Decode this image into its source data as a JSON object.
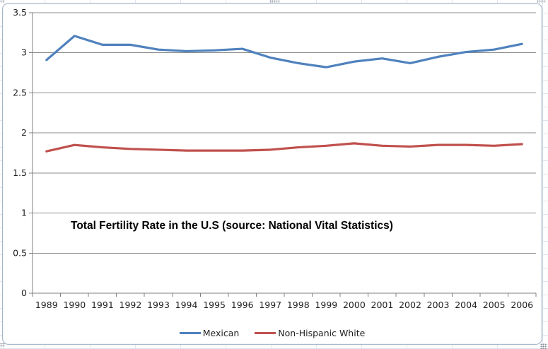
{
  "chart_data": {
    "type": "line",
    "title": "Total Fertility Rate in the U.S (source: National Vital Statistics)",
    "categories": [
      "1989",
      "1990",
      "1991",
      "1992",
      "1993",
      "1994",
      "1995",
      "1996",
      "1997",
      "1998",
      "1999",
      "2000",
      "2001",
      "2002",
      "2003",
      "2004",
      "2005",
      "2006"
    ],
    "series": [
      {
        "name": "Mexican",
        "color": "#4F81BD",
        "values": [
          2.91,
          3.21,
          3.1,
          3.1,
          3.04,
          3.02,
          3.03,
          3.05,
          2.94,
          2.87,
          2.82,
          2.89,
          2.93,
          2.87,
          2.95,
          3.01,
          3.04,
          3.11
        ]
      },
      {
        "name": "Non-Hispanic White",
        "color": "#C0504D",
        "values": [
          1.77,
          1.85,
          1.82,
          1.8,
          1.79,
          1.78,
          1.78,
          1.78,
          1.79,
          1.82,
          1.84,
          1.87,
          1.84,
          1.83,
          1.85,
          1.85,
          1.84,
          1.86
        ]
      }
    ],
    "xlabel": "",
    "ylabel": "",
    "ylim": [
      0,
      3.5
    ],
    "ytick_step": 0.5,
    "ytick_labels": [
      "0",
      "0.5",
      "1",
      "1.5",
      "2",
      "2.5",
      "3",
      "3.5"
    ],
    "grid": true,
    "legend_position": "bottom",
    "gridline_color": "#8C8C8C",
    "axis_color": "#7F7F7F",
    "tick_label_color": "#1F1F1F"
  }
}
